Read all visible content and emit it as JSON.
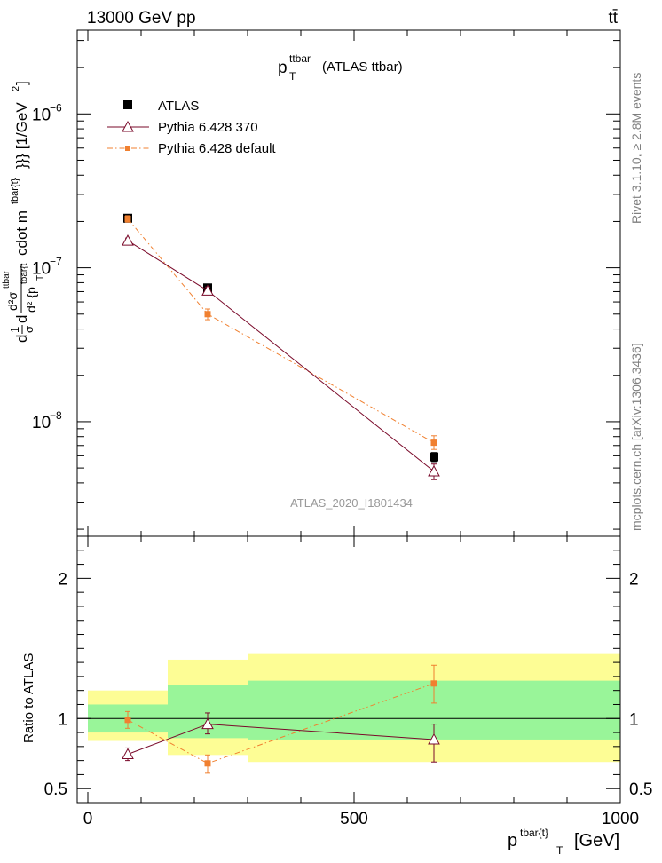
{
  "header": {
    "energy_label": "13000 GeV pp",
    "process_label": "tt̄"
  },
  "side_labels": {
    "rivet": "Rivet 3.1.10, ≥ 2.8M events",
    "mcplots": "mcplots.cern.ch [arXiv:1306.3436]"
  },
  "chart_data": [
    {
      "type": "scatter",
      "title": "p_T^ttbar (ATLAS ttbar)",
      "title_main": "p",
      "title_sup": "ttbar",
      "title_sub": "T",
      "title_rest": "(ATLAS ttbar)",
      "analysis_label": "ATLAS_2020_I1801434",
      "ylabel": "d1/σ d d²σ^ttbar / d² {p_T^tbar{t}} cdot m^tbar{t}}} [1/GeV²]",
      "ylabel_parts": {
        "frac1_num": "1",
        "frac1_den": "σ",
        "frac2_num": "d²σ",
        "frac2_num_sup": "ttbar",
        "frac2_den": "d² {p",
        "frac2_den_sub": "T",
        "frac2_den_sup": "tbar{t",
        "cdot_text": "cdot m",
        "cdot_sup": "tbar{t}",
        "units": "}}} [1/GeV",
        "units_sup": "2",
        "units_close": "]",
        "prefix_d1": "d",
        "prefix_d2": "d"
      },
      "yscale": "log",
      "ylim": [
        1.8e-09,
        3.5e-06
      ],
      "y_ticks": [
        {
          "value": 1e-08,
          "base": "10",
          "exp": "−8"
        },
        {
          "value": 1e-07,
          "base": "10",
          "exp": "−7"
        },
        {
          "value": 1e-06,
          "base": "10",
          "exp": "−6"
        }
      ],
      "xlim": [
        -20,
        1000
      ],
      "legend_position": "top-left",
      "series": [
        {
          "name": "ATLAS",
          "color": "#000000",
          "marker": "filled-square",
          "x": [
            75,
            225,
            650
          ],
          "y": [
            2.1e-07,
            7.4e-08,
            5.9e-09
          ],
          "xerr": [
            [
              0,
              150
            ],
            [
              150,
              300
            ],
            [
              300,
              1000
            ]
          ],
          "yerr": [
            [
              2e-07,
              2.2e-07
            ],
            [
              7e-08,
              7.8e-08
            ],
            [
              5.5e-09,
              6.3e-09
            ]
          ]
        },
        {
          "name": "Pythia 6.428 370",
          "color": "#7a0a2a",
          "marker": "open-triangle",
          "line": "solid",
          "x": [
            75,
            225,
            650
          ],
          "y": [
            1.5e-07,
            7.1e-08,
            4.75e-09
          ],
          "yerr": [
            [
              1.44e-07,
              1.56e-07
            ],
            [
              6.7e-08,
              7.5e-08
            ],
            [
              4.2e-09,
              5.3e-09
            ]
          ]
        },
        {
          "name": "Pythia 6.428 default",
          "color": "#f08030",
          "marker": "filled-small-square",
          "line": "dash-dot",
          "x": [
            75,
            225,
            650
          ],
          "y": [
            2.08e-07,
            5e-08,
            7.3e-09
          ],
          "yerr": [
            [
              1.98e-07,
              2.18e-07
            ],
            [
              4.6e-08,
              5.4e-08
            ],
            [
              6.6e-09,
              8.1e-09
            ]
          ]
        }
      ]
    },
    {
      "type": "scatter",
      "ylabel": "Ratio to ATLAS",
      "xlabel": "p^tbar{t}}_T [GeV]",
      "xlabel_parts": {
        "main": "p",
        "sup": "tbar{t}",
        "sub": "T",
        "rest": "[GeV]"
      },
      "ylim": [
        0.4,
        2.3
      ],
      "y_ticks": [
        0.5,
        1,
        2
      ],
      "y_tick_labels": [
        "0.5",
        "1",
        "2"
      ],
      "xlim": [
        -20,
        1000
      ],
      "x_ticks": [
        0,
        500,
        1000
      ],
      "x_tick_labels": [
        "0",
        "500",
        "1000"
      ],
      "bands": [
        {
          "x": [
            0,
            150
          ],
          "green": [
            0.9,
            1.1
          ],
          "yellow": [
            0.84,
            1.2
          ]
        },
        {
          "x": [
            150,
            300
          ],
          "green": [
            0.86,
            1.24
          ],
          "yellow": [
            0.74,
            1.42
          ]
        },
        {
          "x": [
            300,
            1000
          ],
          "green": [
            0.85,
            1.27
          ],
          "yellow": [
            0.69,
            1.46
          ]
        }
      ],
      "band_colors": {
        "green": "#99f599",
        "yellow": "#fdfd95"
      },
      "reference_line": 1,
      "series": [
        {
          "name": "Pythia 6.428 370",
          "color": "#7a0a2a",
          "marker": "open-triangle",
          "line": "solid",
          "x": [
            75,
            225,
            650
          ],
          "y": [
            0.745,
            0.96,
            0.85
          ],
          "yerr": [
            [
              0.7,
              0.79
            ],
            [
              0.89,
              1.04
            ],
            [
              0.69,
              0.96
            ]
          ]
        },
        {
          "name": "Pythia 6.428 default",
          "color": "#f08030",
          "marker": "filled-small-square",
          "line": "dash-dot",
          "x": [
            75,
            225,
            650
          ],
          "y": [
            0.99,
            0.68,
            1.25
          ],
          "yerr": [
            [
              0.93,
              1.05
            ],
            [
              0.61,
              0.74
            ],
            [
              1.11,
              1.38
            ]
          ]
        }
      ]
    }
  ]
}
